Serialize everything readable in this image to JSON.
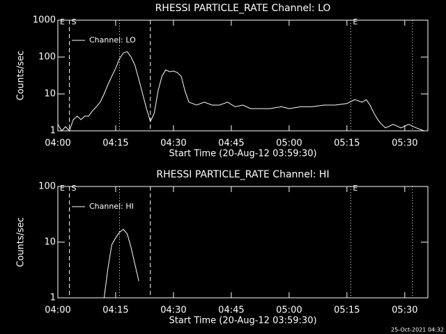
{
  "chart_data": [
    {
      "type": "line",
      "title": "RHESSI PARTICLE_RATE Channel: LO",
      "x_label": "Start Time (20-Aug-12 03:59:30)",
      "y_label": "Counts/sec",
      "log_y": true,
      "color": "#ffffff",
      "xlim": [
        "04:00",
        "05:36"
      ],
      "xticks": [
        "04:00",
        "04:15",
        "04:30",
        "04:45",
        "05:00",
        "05:15",
        "05:30"
      ],
      "ylim": [
        1,
        1000
      ],
      "yticks": [
        1,
        10,
        100,
        1000
      ],
      "legend": "upper left",
      "vlines": [
        {
          "x": "04:03",
          "style": "dashed"
        },
        {
          "x": "04:24",
          "style": "dashed"
        },
        {
          "x": "04:16",
          "style": "dotted"
        },
        {
          "x": "05:16",
          "style": "dotted"
        },
        {
          "x": "05:32",
          "style": "dotted"
        }
      ],
      "annotations": [
        {
          "text": "E",
          "x": "04:00"
        },
        {
          "text": "S",
          "x": "04:03"
        },
        {
          "text": "E",
          "x": "05:16"
        }
      ],
      "x": [
        "04:00",
        "04:01",
        "04:02",
        "04:03",
        "04:04",
        "04:05",
        "04:06",
        "04:07",
        "04:08",
        "04:09",
        "04:10",
        "04:11",
        "04:12",
        "04:13",
        "04:14",
        "04:15",
        "04:16",
        "04:17",
        "04:18",
        "04:19",
        "04:20",
        "04:21",
        "04:22",
        "04:23",
        "04:24",
        "04:25",
        "04:26",
        "04:27",
        "04:28",
        "04:29",
        "04:30",
        "04:31",
        "04:32",
        "04:33",
        "04:34",
        "04:36",
        "04:38",
        "04:40",
        "04:42",
        "04:44",
        "04:46",
        "04:48",
        "04:50",
        "04:52",
        "04:55",
        "04:58",
        "05:00",
        "05:03",
        "05:06",
        "05:09",
        "05:12",
        "05:15",
        "05:17",
        "05:19",
        "05:20",
        "05:21",
        "05:22",
        "05:23",
        "05:24",
        "05:25",
        "05:27",
        "05:29",
        "05:31",
        "05:33",
        "05:35"
      ],
      "series": [
        {
          "name": "Channel: LO",
          "color": "#ffffff",
          "values": [
            1.5,
            1,
            1.3,
            1,
            2,
            2.5,
            2,
            2.5,
            2.5,
            3.5,
            4.5,
            6,
            10,
            18,
            30,
            50,
            90,
            130,
            140,
            100,
            60,
            25,
            10,
            4,
            1.8,
            3,
            12,
            30,
            45,
            40,
            42,
            38,
            30,
            12,
            6,
            5,
            6,
            5,
            5,
            6,
            4.5,
            5,
            4,
            4,
            4,
            4.5,
            4,
            4.5,
            4.5,
            5,
            5,
            5.5,
            7,
            6,
            7,
            5,
            3,
            2,
            1.5,
            1.2,
            1.5,
            1.2,
            1.5,
            1.2,
            1
          ]
        }
      ]
    },
    {
      "type": "line",
      "title": "RHESSI PARTICLE_RATE Channel: HI",
      "x_label": "Start Time (20-Aug-12 03:59:30)",
      "y_label": "Counts/sec",
      "log_y": true,
      "color": "#ffffff",
      "xlim": [
        "04:00",
        "05:36"
      ],
      "xticks": [
        "04:00",
        "04:15",
        "04:30",
        "04:45",
        "05:00",
        "05:15",
        "05:30"
      ],
      "ylim": [
        1,
        100
      ],
      "yticks": [
        1,
        10,
        100
      ],
      "legend": "upper left",
      "vlines": [
        {
          "x": "04:03",
          "style": "dashed"
        },
        {
          "x": "04:24",
          "style": "dashed"
        },
        {
          "x": "04:16",
          "style": "dotted"
        },
        {
          "x": "05:16",
          "style": "dotted"
        },
        {
          "x": "05:32",
          "style": "dotted"
        }
      ],
      "annotations": [
        {
          "text": "E",
          "x": "04:00"
        },
        {
          "text": "S",
          "x": "04:03"
        },
        {
          "text": "E",
          "x": "05:16"
        }
      ],
      "x": [
        "04:12",
        "04:13",
        "04:14",
        "04:15",
        "04:16",
        "04:17",
        "04:18",
        "04:19",
        "04:20",
        "04:21"
      ],
      "series": [
        {
          "name": "Channel: HI",
          "color": "#ffffff",
          "values": [
            1,
            3.4,
            9,
            12,
            15,
            17,
            14,
            8,
            4,
            2
          ]
        }
      ]
    }
  ],
  "footer": "25-Oct-2021 04:32"
}
